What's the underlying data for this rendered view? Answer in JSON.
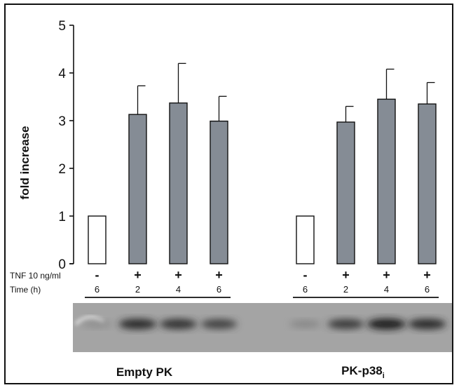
{
  "chart_data": {
    "type": "bar",
    "ylabel": "fold increase",
    "ylim": [
      0,
      5
    ],
    "yticks": [
      0,
      1,
      2,
      3,
      4,
      5
    ],
    "row_labels": {
      "treatment": "TNF 10 ng/ml",
      "time": "Time (h)"
    },
    "groups": [
      {
        "label_main": "Empty PK",
        "label_sub": "",
        "bars": [
          {
            "tnf": "-",
            "time": "6",
            "value": 1.0,
            "error": 0.0,
            "filled": false
          },
          {
            "tnf": "+",
            "time": "2",
            "value": 3.13,
            "error": 0.6,
            "filled": true
          },
          {
            "tnf": "+",
            "time": "4",
            "value": 3.37,
            "error": 0.83,
            "filled": true
          },
          {
            "tnf": "+",
            "time": "6",
            "value": 2.99,
            "error": 0.52,
            "filled": true
          }
        ]
      },
      {
        "label_main": "PK-p38",
        "label_sub": "i",
        "bars": [
          {
            "tnf": "-",
            "time": "6",
            "value": 1.0,
            "error": 0.0,
            "filled": false
          },
          {
            "tnf": "+",
            "time": "2",
            "value": 2.97,
            "error": 0.33,
            "filled": true
          },
          {
            "tnf": "+",
            "time": "4",
            "value": 3.45,
            "error": 0.63,
            "filled": true
          },
          {
            "tnf": "+",
            "time": "6",
            "value": 3.35,
            "error": 0.45,
            "filled": true
          }
        ]
      }
    ],
    "bar_fill_color": "#858c95",
    "blot_lane_intensity": [
      0.25,
      0.85,
      0.8,
      0.7,
      0.3,
      0.75,
      0.95,
      0.85
    ]
  }
}
